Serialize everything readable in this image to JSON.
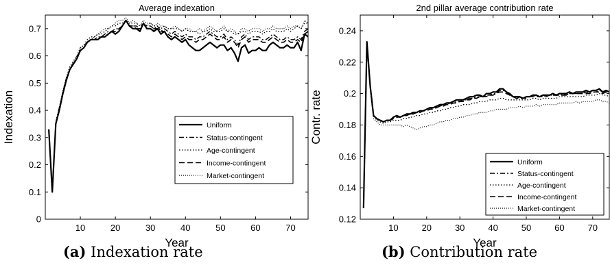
{
  "chart_data": [
    {
      "type": "line",
      "title": "Average indexation",
      "xlabel": "Year",
      "ylabel": "Indexation",
      "xlim": [
        0,
        75
      ],
      "ylim": [
        0,
        0.75
      ],
      "xticks": [
        10,
        20,
        30,
        40,
        50,
        60,
        70
      ],
      "yticks": [
        0,
        0.1,
        0.2,
        0.3,
        0.4,
        0.5,
        0.6,
        0.7
      ],
      "ytick_labels": [
        "0",
        "0.1",
        "0.2",
        "0.3",
        "0.4",
        "0.5",
        "0.6",
        "0.7"
      ],
      "grid": false,
      "legend_position": "center-right",
      "caption_label": "(a)",
      "caption_text": "Indexation rate",
      "x": [
        1,
        2,
        3,
        4,
        5,
        6,
        7,
        8,
        9,
        10,
        11,
        12,
        13,
        14,
        15,
        16,
        17,
        18,
        19,
        20,
        21,
        22,
        23,
        24,
        25,
        26,
        27,
        28,
        29,
        30,
        31,
        32,
        33,
        34,
        35,
        36,
        37,
        38,
        39,
        40,
        41,
        42,
        43,
        44,
        45,
        46,
        47,
        48,
        49,
        50,
        51,
        52,
        53,
        54,
        55,
        56,
        57,
        58,
        59,
        60,
        61,
        62,
        63,
        64,
        65,
        66,
        67,
        68,
        69,
        70,
        71,
        72,
        73,
        74,
        75
      ],
      "series": [
        {
          "name": "Uniform",
          "style": "solid",
          "width": 2.2,
          "values": [
            0.33,
            0.1,
            0.35,
            0.4,
            0.46,
            0.51,
            0.55,
            0.57,
            0.59,
            0.62,
            0.63,
            0.65,
            0.66,
            0.66,
            0.66,
            0.67,
            0.67,
            0.68,
            0.69,
            0.68,
            0.69,
            0.71,
            0.73,
            0.71,
            0.7,
            0.7,
            0.69,
            0.72,
            0.7,
            0.7,
            0.69,
            0.7,
            0.68,
            0.69,
            0.67,
            0.66,
            0.67,
            0.66,
            0.65,
            0.66,
            0.64,
            0.63,
            0.62,
            0.62,
            0.63,
            0.64,
            0.65,
            0.64,
            0.63,
            0.64,
            0.64,
            0.62,
            0.63,
            0.61,
            0.58,
            0.63,
            0.64,
            0.61,
            0.62,
            0.62,
            0.63,
            0.62,
            0.62,
            0.64,
            0.65,
            0.64,
            0.63,
            0.63,
            0.64,
            0.63,
            0.63,
            0.65,
            0.62,
            0.68,
            0.67
          ]
        },
        {
          "name": "Status-contingent",
          "style": "dashdot",
          "width": 1.4,
          "values": [
            0.33,
            0.1,
            0.35,
            0.41,
            0.46,
            0.51,
            0.55,
            0.57,
            0.59,
            0.62,
            0.63,
            0.65,
            0.66,
            0.66,
            0.67,
            0.67,
            0.68,
            0.69,
            0.69,
            0.7,
            0.7,
            0.71,
            0.73,
            0.71,
            0.71,
            0.71,
            0.7,
            0.72,
            0.71,
            0.71,
            0.7,
            0.71,
            0.69,
            0.7,
            0.69,
            0.68,
            0.69,
            0.68,
            0.67,
            0.68,
            0.67,
            0.67,
            0.66,
            0.67,
            0.67,
            0.68,
            0.69,
            0.68,
            0.67,
            0.67,
            0.68,
            0.66,
            0.67,
            0.66,
            0.64,
            0.67,
            0.68,
            0.66,
            0.67,
            0.67,
            0.67,
            0.66,
            0.66,
            0.67,
            0.68,
            0.67,
            0.66,
            0.66,
            0.67,
            0.66,
            0.66,
            0.67,
            0.66,
            0.69,
            0.7
          ]
        },
        {
          "name": "Age-contingent",
          "style": "dotted",
          "width": 1.3,
          "values": [
            0.33,
            0.1,
            0.36,
            0.41,
            0.47,
            0.52,
            0.56,
            0.58,
            0.6,
            0.63,
            0.64,
            0.66,
            0.67,
            0.67,
            0.68,
            0.68,
            0.69,
            0.7,
            0.71,
            0.71,
            0.72,
            0.72,
            0.73,
            0.72,
            0.72,
            0.72,
            0.71,
            0.72,
            0.71,
            0.72,
            0.71,
            0.71,
            0.7,
            0.71,
            0.7,
            0.7,
            0.7,
            0.7,
            0.69,
            0.7,
            0.69,
            0.69,
            0.69,
            0.68,
            0.69,
            0.69,
            0.7,
            0.69,
            0.69,
            0.69,
            0.7,
            0.69,
            0.69,
            0.68,
            0.68,
            0.69,
            0.69,
            0.68,
            0.69,
            0.69,
            0.69,
            0.68,
            0.69,
            0.69,
            0.7,
            0.69,
            0.69,
            0.69,
            0.7,
            0.69,
            0.7,
            0.71,
            0.7,
            0.72,
            0.72
          ]
        },
        {
          "name": "Income-contingent",
          "style": "dashed",
          "width": 1.6,
          "values": [
            0.33,
            0.1,
            0.35,
            0.4,
            0.46,
            0.51,
            0.55,
            0.57,
            0.59,
            0.62,
            0.63,
            0.65,
            0.66,
            0.66,
            0.66,
            0.67,
            0.67,
            0.68,
            0.69,
            0.69,
            0.7,
            0.71,
            0.73,
            0.71,
            0.71,
            0.7,
            0.7,
            0.72,
            0.7,
            0.7,
            0.7,
            0.7,
            0.69,
            0.69,
            0.68,
            0.67,
            0.68,
            0.67,
            0.66,
            0.67,
            0.66,
            0.66,
            0.65,
            0.66,
            0.66,
            0.67,
            0.68,
            0.67,
            0.66,
            0.66,
            0.67,
            0.65,
            0.66,
            0.65,
            0.63,
            0.66,
            0.67,
            0.65,
            0.66,
            0.66,
            0.66,
            0.65,
            0.65,
            0.66,
            0.67,
            0.66,
            0.65,
            0.65,
            0.66,
            0.65,
            0.65,
            0.66,
            0.65,
            0.68,
            0.69
          ]
        },
        {
          "name": "Market-contingent",
          "style": "dotted-fine",
          "width": 1.2,
          "values": [
            0.33,
            0.1,
            0.35,
            0.41,
            0.47,
            0.52,
            0.55,
            0.58,
            0.6,
            0.63,
            0.64,
            0.65,
            0.66,
            0.67,
            0.68,
            0.69,
            0.7,
            0.7,
            0.71,
            0.72,
            0.73,
            0.73,
            0.74,
            0.72,
            0.73,
            0.72,
            0.71,
            0.73,
            0.72,
            0.72,
            0.71,
            0.72,
            0.71,
            0.71,
            0.7,
            0.7,
            0.71,
            0.7,
            0.69,
            0.7,
            0.7,
            0.69,
            0.69,
            0.7,
            0.69,
            0.7,
            0.71,
            0.7,
            0.69,
            0.7,
            0.71,
            0.69,
            0.7,
            0.69,
            0.68,
            0.7,
            0.7,
            0.69,
            0.7,
            0.7,
            0.7,
            0.69,
            0.7,
            0.7,
            0.71,
            0.7,
            0.7,
            0.7,
            0.71,
            0.7,
            0.71,
            0.71,
            0.7,
            0.73,
            0.72
          ]
        }
      ]
    },
    {
      "type": "line",
      "title": "2nd pillar average contribution rate",
      "xlabel": "Year",
      "ylabel": "Contr. rate",
      "xlim": [
        0,
        75
      ],
      "ylim": [
        0.12,
        0.25
      ],
      "xticks": [
        10,
        20,
        30,
        40,
        50,
        60,
        70
      ],
      "yticks": [
        0.12,
        0.14,
        0.16,
        0.18,
        0.2,
        0.22,
        0.24
      ],
      "ytick_labels": [
        "0.12",
        "0.14",
        "0.16",
        "0.18",
        "0.2",
        "0.22",
        "0.24"
      ],
      "grid": false,
      "legend_position": "bottom-right",
      "caption_label": "(b)",
      "caption_text": "Contribution rate",
      "x": [
        1,
        2,
        3,
        4,
        5,
        6,
        7,
        8,
        9,
        10,
        11,
        12,
        13,
        14,
        15,
        16,
        17,
        18,
        19,
        20,
        21,
        22,
        23,
        24,
        25,
        26,
        27,
        28,
        29,
        30,
        31,
        32,
        33,
        34,
        35,
        36,
        37,
        38,
        39,
        40,
        41,
        42,
        43,
        44,
        45,
        46,
        47,
        48,
        49,
        50,
        51,
        52,
        53,
        54,
        55,
        56,
        57,
        58,
        59,
        60,
        61,
        62,
        63,
        64,
        65,
        66,
        67,
        68,
        69,
        70,
        71,
        72,
        73,
        74,
        75
      ],
      "series": [
        {
          "name": "Uniform",
          "style": "solid",
          "width": 2.2,
          "values": [
            0.127,
            0.233,
            0.205,
            0.186,
            0.184,
            0.183,
            0.182,
            0.183,
            0.183,
            0.185,
            0.186,
            0.185,
            0.186,
            0.187,
            0.187,
            0.188,
            0.188,
            0.189,
            0.189,
            0.19,
            0.191,
            0.191,
            0.192,
            0.193,
            0.193,
            0.194,
            0.194,
            0.195,
            0.196,
            0.196,
            0.196,
            0.197,
            0.198,
            0.198,
            0.199,
            0.199,
            0.198,
            0.2,
            0.2,
            0.201,
            0.201,
            0.203,
            0.203,
            0.201,
            0.2,
            0.198,
            0.198,
            0.198,
            0.197,
            0.198,
            0.198,
            0.199,
            0.199,
            0.198,
            0.199,
            0.199,
            0.199,
            0.2,
            0.199,
            0.2,
            0.2,
            0.2,
            0.201,
            0.2,
            0.201,
            0.201,
            0.201,
            0.202,
            0.201,
            0.202,
            0.202,
            0.203,
            0.201,
            0.202,
            0.201
          ]
        },
        {
          "name": "Status-contingent",
          "style": "dashdot",
          "width": 1.4,
          "values": [
            0.127,
            0.232,
            0.205,
            0.186,
            0.184,
            0.183,
            0.182,
            0.183,
            0.183,
            0.185,
            0.185,
            0.185,
            0.186,
            0.186,
            0.187,
            0.187,
            0.188,
            0.188,
            0.189,
            0.19,
            0.19,
            0.191,
            0.191,
            0.192,
            0.193,
            0.193,
            0.194,
            0.194,
            0.195,
            0.195,
            0.196,
            0.196,
            0.197,
            0.197,
            0.198,
            0.198,
            0.198,
            0.199,
            0.199,
            0.2,
            0.2,
            0.202,
            0.202,
            0.201,
            0.199,
            0.198,
            0.198,
            0.197,
            0.197,
            0.198,
            0.198,
            0.198,
            0.199,
            0.198,
            0.198,
            0.199,
            0.199,
            0.199,
            0.199,
            0.199,
            0.2,
            0.199,
            0.2,
            0.2,
            0.2,
            0.2,
            0.2,
            0.201,
            0.2,
            0.201,
            0.201,
            0.202,
            0.201,
            0.201,
            0.201
          ]
        },
        {
          "name": "Age-contingent",
          "style": "dotted",
          "width": 1.3,
          "values": [
            0.127,
            0.232,
            0.204,
            0.186,
            0.183,
            0.182,
            0.181,
            0.182,
            0.182,
            0.183,
            0.183,
            0.183,
            0.184,
            0.184,
            0.185,
            0.185,
            0.186,
            0.186,
            0.187,
            0.187,
            0.188,
            0.188,
            0.189,
            0.189,
            0.19,
            0.19,
            0.191,
            0.191,
            0.192,
            0.192,
            0.193,
            0.193,
            0.193,
            0.194,
            0.194,
            0.195,
            0.195,
            0.195,
            0.196,
            0.196,
            0.196,
            0.197,
            0.197,
            0.196,
            0.196,
            0.196,
            0.196,
            0.196,
            0.196,
            0.196,
            0.196,
            0.197,
            0.197,
            0.196,
            0.197,
            0.197,
            0.197,
            0.197,
            0.197,
            0.198,
            0.198,
            0.198,
            0.198,
            0.198,
            0.198,
            0.198,
            0.198,
            0.199,
            0.199,
            0.199,
            0.199,
            0.2,
            0.199,
            0.199,
            0.198
          ]
        },
        {
          "name": "Income-contingent",
          "style": "dashed",
          "width": 1.6,
          "values": [
            0.127,
            0.232,
            0.205,
            0.186,
            0.184,
            0.183,
            0.182,
            0.183,
            0.183,
            0.184,
            0.185,
            0.185,
            0.186,
            0.186,
            0.187,
            0.187,
            0.188,
            0.188,
            0.189,
            0.189,
            0.19,
            0.19,
            0.191,
            0.192,
            0.192,
            0.193,
            0.193,
            0.194,
            0.194,
            0.195,
            0.195,
            0.196,
            0.196,
            0.197,
            0.197,
            0.198,
            0.198,
            0.198,
            0.199,
            0.199,
            0.2,
            0.201,
            0.201,
            0.2,
            0.199,
            0.198,
            0.197,
            0.197,
            0.197,
            0.197,
            0.198,
            0.198,
            0.198,
            0.198,
            0.198,
            0.198,
            0.199,
            0.199,
            0.199,
            0.199,
            0.199,
            0.199,
            0.2,
            0.2,
            0.2,
            0.2,
            0.2,
            0.2,
            0.2,
            0.201,
            0.201,
            0.201,
            0.2,
            0.201,
            0.2
          ]
        },
        {
          "name": "Market-contingent",
          "style": "dotted-fine",
          "width": 1.2,
          "values": [
            0.127,
            0.23,
            0.202,
            0.184,
            0.182,
            0.18,
            0.18,
            0.18,
            0.18,
            0.18,
            0.18,
            0.18,
            0.179,
            0.18,
            0.179,
            0.178,
            0.177,
            0.178,
            0.179,
            0.179,
            0.18,
            0.18,
            0.181,
            0.182,
            0.182,
            0.183,
            0.183,
            0.184,
            0.184,
            0.185,
            0.185,
            0.186,
            0.186,
            0.187,
            0.187,
            0.188,
            0.188,
            0.188,
            0.189,
            0.189,
            0.19,
            0.19,
            0.19,
            0.19,
            0.191,
            0.191,
            0.191,
            0.192,
            0.191,
            0.192,
            0.192,
            0.192,
            0.193,
            0.192,
            0.193,
            0.193,
            0.193,
            0.193,
            0.193,
            0.194,
            0.194,
            0.194,
            0.194,
            0.194,
            0.195,
            0.194,
            0.195,
            0.195,
            0.195,
            0.195,
            0.196,
            0.196,
            0.195,
            0.195,
            0.194
          ]
        }
      ]
    }
  ]
}
